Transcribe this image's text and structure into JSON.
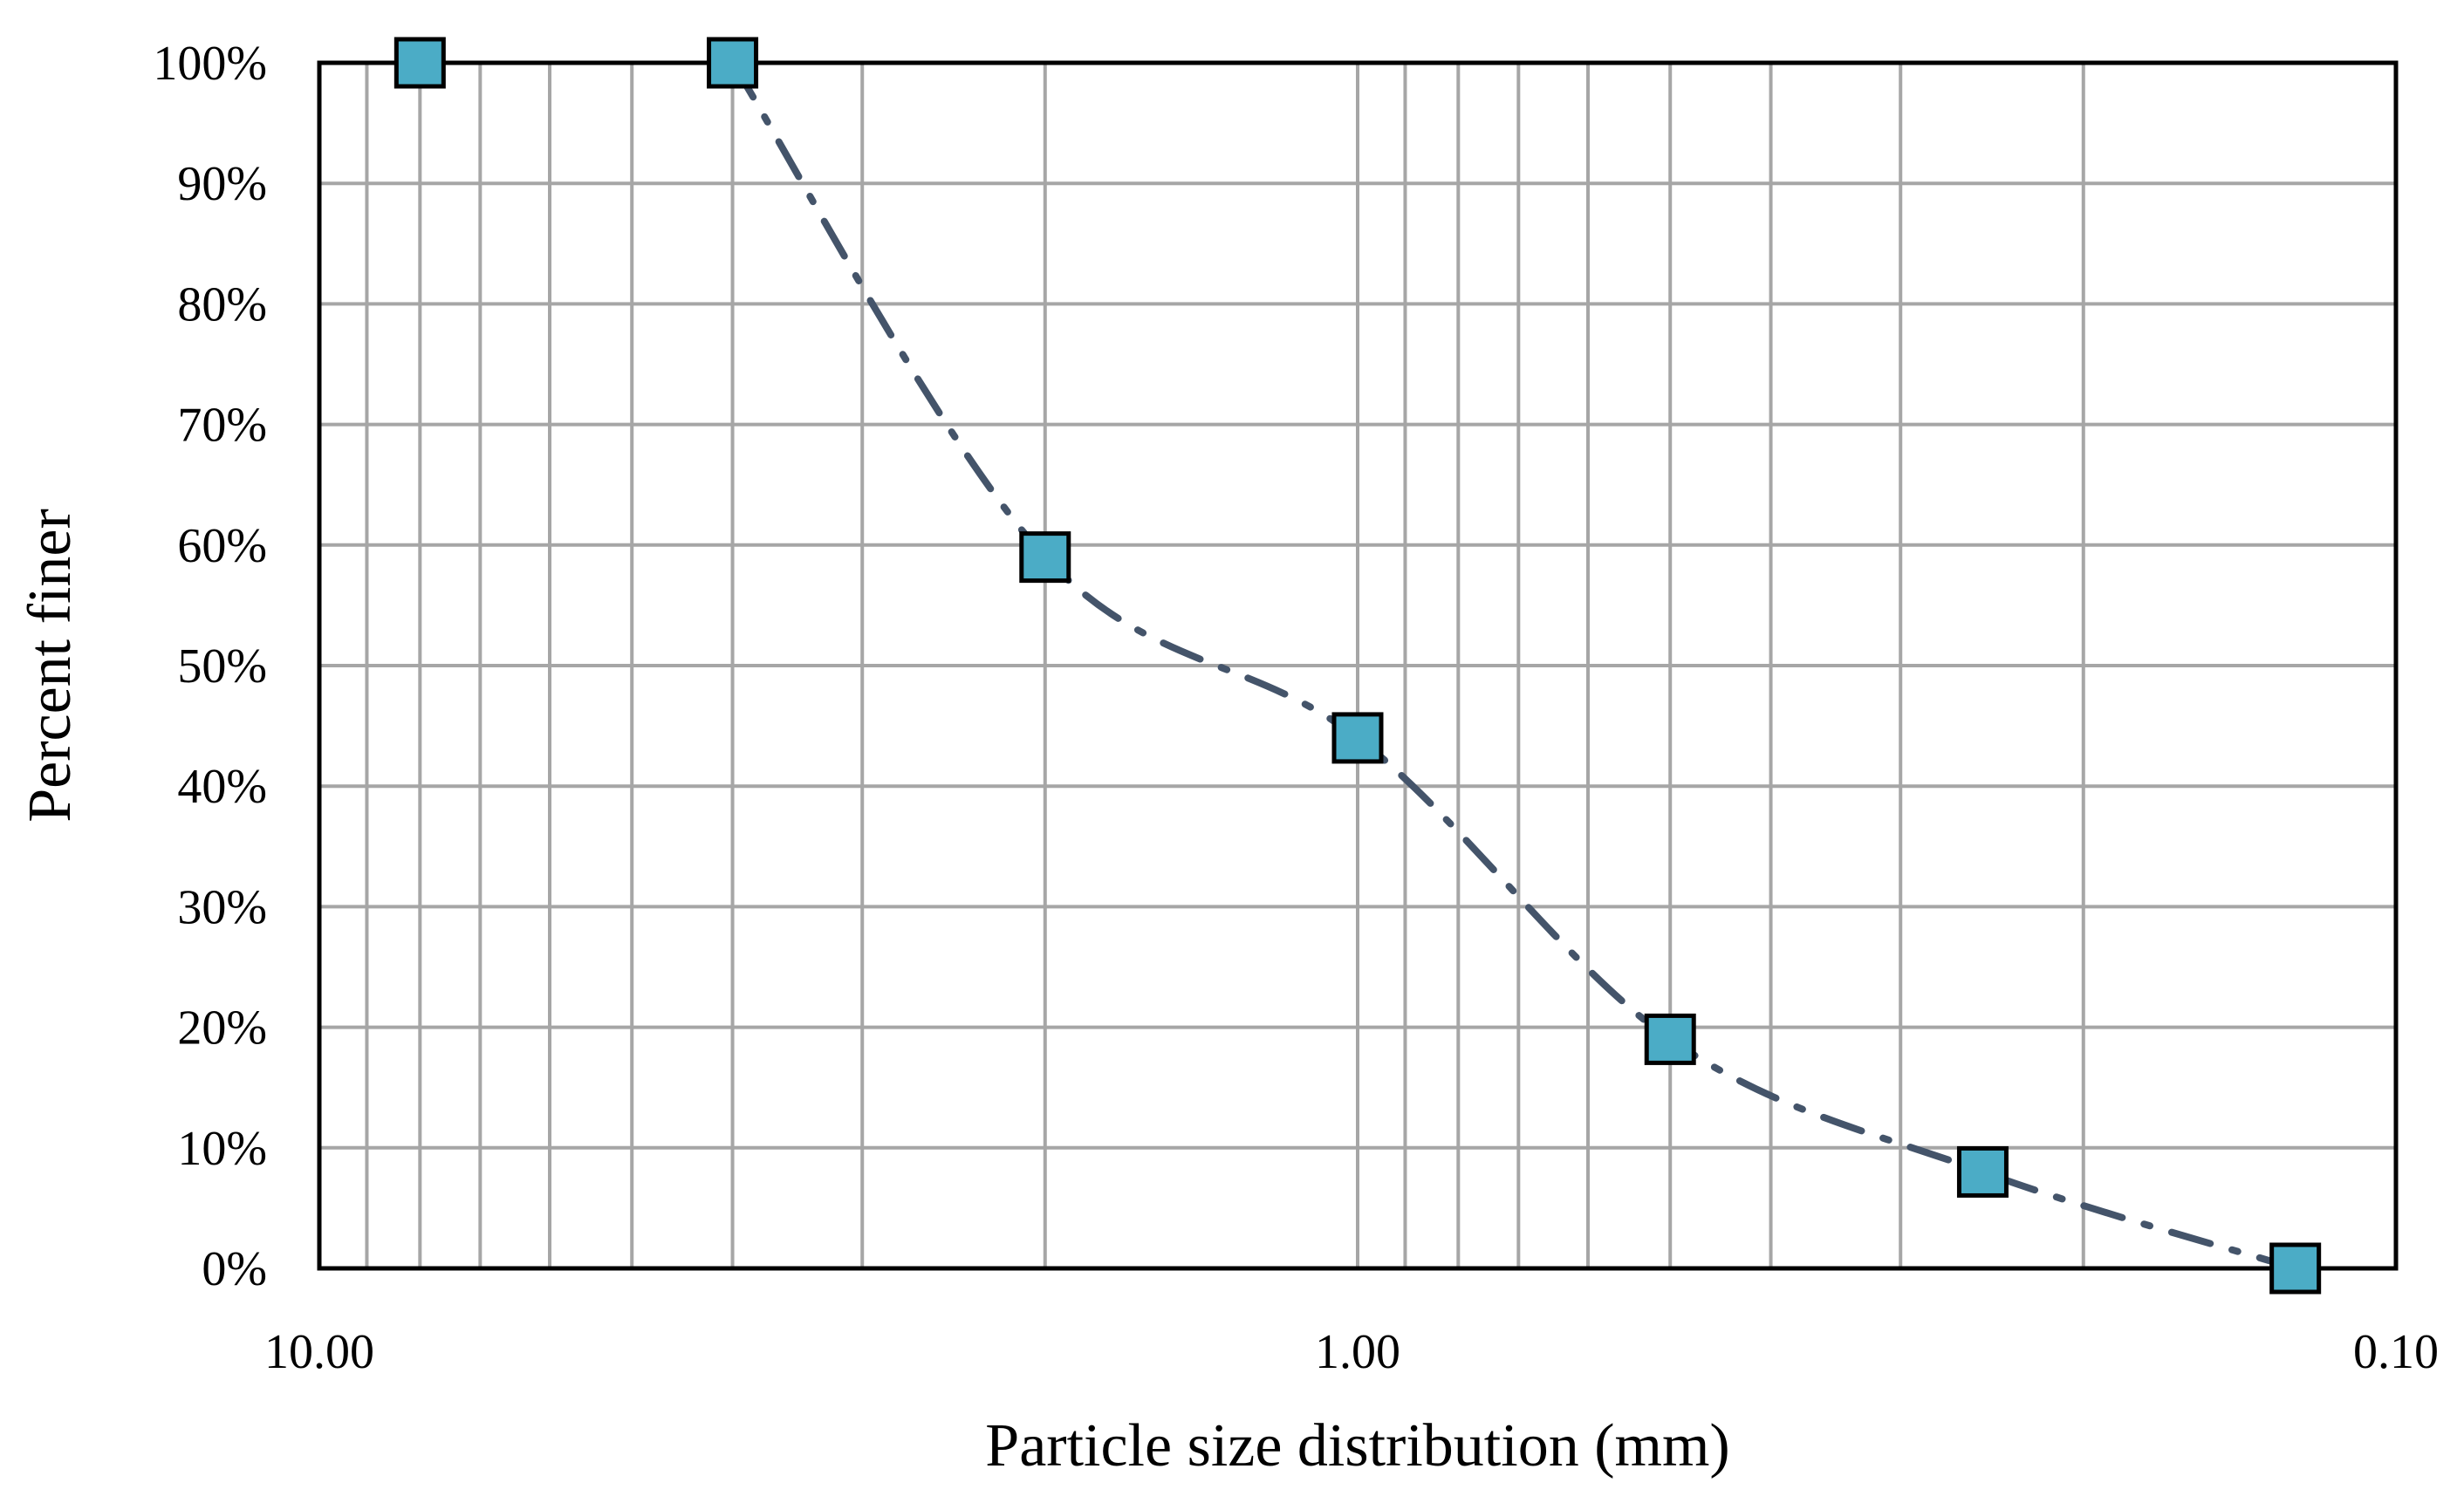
{
  "chart_data": {
    "type": "scatter",
    "x_scale": "log",
    "x_reversed": true,
    "xlim": [
      10,
      0.1
    ],
    "ylim": [
      0,
      100
    ],
    "xlabel": "Particle size distribution (mm)",
    "ylabel": "Percent finer",
    "x_tick_labels": [
      {
        "value": 10,
        "label": "10.00"
      },
      {
        "value": 1,
        "label": "1.00"
      },
      {
        "value": 0.1,
        "label": "0.10"
      }
    ],
    "y_tick_labels": [
      {
        "value": 0,
        "label": "0%"
      },
      {
        "value": 10,
        "label": "10%"
      },
      {
        "value": 20,
        "label": "20%"
      },
      {
        "value": 30,
        "label": "30%"
      },
      {
        "value": 40,
        "label": "40%"
      },
      {
        "value": 50,
        "label": "50%"
      },
      {
        "value": 60,
        "label": "60%"
      },
      {
        "value": 70,
        "label": "70%"
      },
      {
        "value": 80,
        "label": "80%"
      },
      {
        "value": 90,
        "label": "90%"
      },
      {
        "value": 100,
        "label": "100%"
      }
    ],
    "x_grid_values": [
      9,
      8,
      7,
      6,
      5,
      4,
      3,
      2,
      1,
      0.9,
      0.8,
      0.7,
      0.6,
      0.5,
      0.4,
      0.3,
      0.2
    ],
    "grid": true,
    "legend": "none",
    "series": [
      {
        "x": [
          8,
          4,
          2,
          1,
          0.5,
          0.25,
          0.125
        ],
        "y": [
          100,
          100,
          59,
          44,
          19,
          8,
          0
        ],
        "line_style": "dash-dot",
        "line_color": "#44546a",
        "marker": "square",
        "marker_color": "#4bacc6"
      }
    ]
  }
}
